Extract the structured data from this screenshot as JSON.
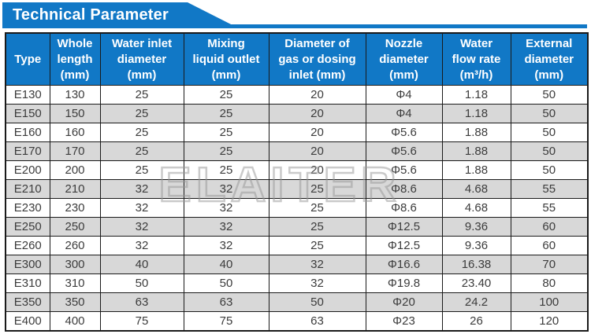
{
  "colors": {
    "accent_blue": "#1178c6",
    "alt_row_gray": "#d8d8d8",
    "border_dark": "#1a1a1a",
    "body_text": "#3c3c3c",
    "header_text": "#ffffff",
    "watermark_gray": "#969696"
  },
  "banner": {
    "title": "Technical Parameter"
  },
  "watermark": {
    "text": "ELAITER"
  },
  "table": {
    "columns": [
      {
        "label": "Type"
      },
      {
        "label": "Whole\nlength\n(mm)"
      },
      {
        "label": "Water inlet\ndiameter\n(mm)"
      },
      {
        "label": "Mixing\nliquid outlet\n(mm)"
      },
      {
        "label": "Diameter of\ngas or dosing\ninlet (mm)"
      },
      {
        "label": "Nozzle\ndiameter\n(mm)"
      },
      {
        "label": "Water\nflow rate\n(m³/h)"
      },
      {
        "label": "External\ndiameter\n(mm)"
      }
    ],
    "rows": [
      [
        "E130",
        "130",
        "25",
        "25",
        "20",
        "Φ4",
        "1.18",
        "50"
      ],
      [
        "E150",
        "150",
        "25",
        "25",
        "20",
        "Φ4",
        "1.18",
        "50"
      ],
      [
        "E160",
        "160",
        "25",
        "25",
        "20",
        "Φ5.6",
        "1.88",
        "50"
      ],
      [
        "E170",
        "170",
        "25",
        "25",
        "20",
        "Φ5.6",
        "1.88",
        "50"
      ],
      [
        "E200",
        "200",
        "25",
        "25",
        "20",
        "Φ5.6",
        "1.88",
        "50"
      ],
      [
        "E210",
        "210",
        "32",
        "32",
        "25",
        "Φ8.6",
        "4.68",
        "55"
      ],
      [
        "E230",
        "230",
        "32",
        "32",
        "25",
        "Φ8.6",
        "4.68",
        "55"
      ],
      [
        "E250",
        "250",
        "32",
        "32",
        "25",
        "Φ12.5",
        "9.36",
        "60"
      ],
      [
        "E260",
        "260",
        "32",
        "32",
        "25",
        "Φ12.5",
        "9.36",
        "60"
      ],
      [
        "E300",
        "300",
        "40",
        "40",
        "32",
        "Φ16.6",
        "16.38",
        "70"
      ],
      [
        "E310",
        "310",
        "50",
        "50",
        "32",
        "Φ19.8",
        "23.40",
        "80"
      ],
      [
        "E350",
        "350",
        "63",
        "63",
        "50",
        "Φ20",
        "24.2",
        "100"
      ],
      [
        "E400",
        "400",
        "75",
        "75",
        "63",
        "Φ23",
        "26",
        "120"
      ]
    ]
  }
}
